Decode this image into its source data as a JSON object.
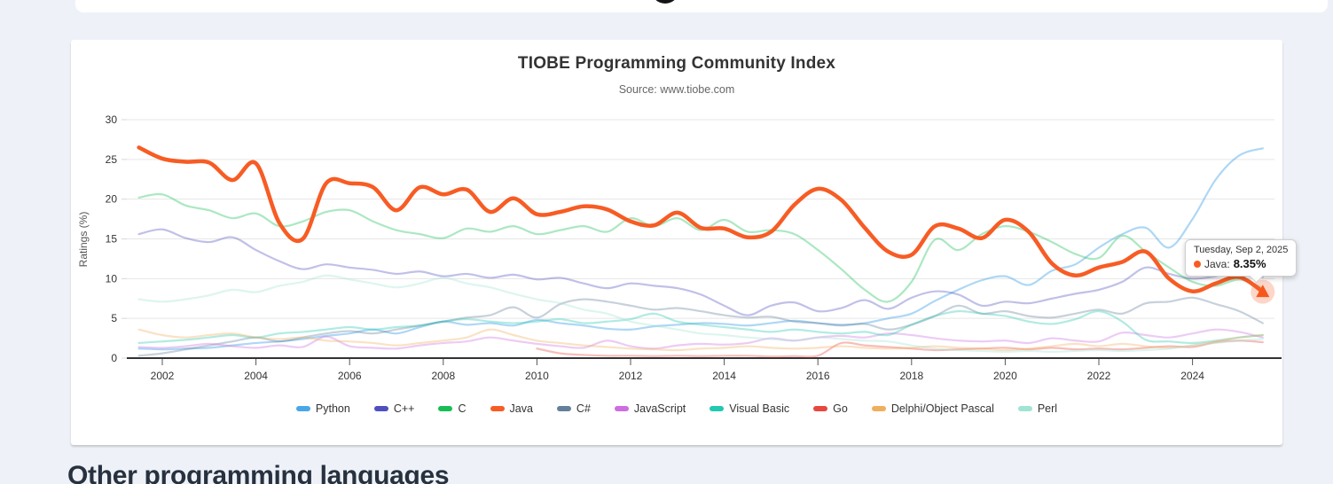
{
  "page": {
    "background": "#eef2f8",
    "other_section_heading": "Other programming languages"
  },
  "chart": {
    "title": "TIOBE Programming Community Index",
    "subtitle": "Source: www.tiobe.com",
    "y_axis_label": "Ratings (%)",
    "tooltip": {
      "date": "Tuesday, Sep 2, 2025",
      "series": "Java",
      "value": "8.35%"
    }
  },
  "chart_data": {
    "type": "line",
    "title": "TIOBE Programming Community Index",
    "subtitle": "Source: www.tiobe.com",
    "xlabel": "",
    "ylabel": "Ratings (%)",
    "ylim": [
      0,
      30
    ],
    "grid": true,
    "legend_position": "bottom",
    "y_ticks": [
      0,
      5,
      10,
      15,
      20,
      25,
      30
    ],
    "x_ticks": [
      2002,
      2004,
      2006,
      2008,
      2010,
      2012,
      2014,
      2016,
      2018,
      2020,
      2022,
      2024
    ],
    "x": [
      2001.5,
      2002,
      2002.5,
      2003,
      2003.5,
      2004,
      2004.5,
      2005,
      2005.5,
      2006,
      2006.5,
      2007,
      2007.5,
      2008,
      2008.5,
      2009,
      2009.5,
      2010,
      2010.5,
      2011,
      2011.5,
      2012,
      2012.5,
      2013,
      2013.5,
      2014,
      2014.5,
      2015,
      2015.5,
      2016,
      2016.5,
      2017,
      2017.5,
      2018,
      2018.5,
      2019,
      2019.5,
      2020,
      2020.5,
      2021,
      2021.5,
      2022,
      2022.5,
      2023,
      2023.5,
      2024,
      2024.5,
      2025,
      2025.5
    ],
    "series": [
      {
        "name": "Python",
        "color": "#49A7E8",
        "values": [
          1.2,
          1.1,
          1.2,
          1.3,
          1.6,
          1.9,
          2.1,
          2.4,
          2.8,
          3.1,
          3.6,
          3.1,
          3.9,
          4.6,
          4.2,
          4.4,
          4.1,
          4.8,
          4.4,
          4.1,
          3.7,
          3.6,
          4.0,
          4.2,
          4.4,
          4.3,
          4.1,
          4.4,
          4.7,
          4.4,
          4.2,
          4.4,
          5.0,
          5.6,
          7.2,
          8.6,
          9.8,
          10.3,
          9.2,
          11.0,
          11.8,
          13.9,
          15.6,
          16.4,
          13.9,
          17.5,
          22.5,
          25.5,
          26.4
        ]
      },
      {
        "name": "C++",
        "color": "#4F4FBF",
        "values": [
          15.6,
          16.2,
          15.1,
          14.6,
          15.2,
          13.6,
          12.2,
          11.2,
          11.8,
          11.4,
          11.1,
          10.6,
          10.9,
          10.3,
          10.6,
          10.1,
          10.5,
          9.9,
          10.1,
          9.4,
          8.8,
          9.4,
          9.1,
          8.8,
          8.0,
          6.6,
          5.4,
          6.6,
          7.0,
          5.9,
          6.3,
          7.3,
          6.2,
          7.6,
          8.4,
          8.0,
          6.6,
          7.1,
          6.9,
          7.5,
          8.1,
          8.6,
          9.6,
          11.4,
          10.6,
          10.0,
          10.3,
          11.0,
          10.2
        ]
      },
      {
        "name": "C",
        "color": "#16BE54",
        "values": [
          20.2,
          20.6,
          19.2,
          18.6,
          17.6,
          18.2,
          16.6,
          17.2,
          18.4,
          18.6,
          17.2,
          16.1,
          15.6,
          15.1,
          16.3,
          15.9,
          16.6,
          15.6,
          16.1,
          16.6,
          15.9,
          17.6,
          16.6,
          17.6,
          16.1,
          17.4,
          15.9,
          16.1,
          15.6,
          13.6,
          11.2,
          8.6,
          7.1,
          9.6,
          14.9,
          13.6,
          15.6,
          16.6,
          15.9,
          14.6,
          13.1,
          12.6,
          15.4,
          13.4,
          11.4,
          9.6,
          9.1,
          9.9,
          8.8
        ]
      },
      {
        "name": "Java",
        "color": "#F75C24",
        "values": [
          26.5,
          25.1,
          24.7,
          24.6,
          22.4,
          24.5,
          17.0,
          15.0,
          22.0,
          22.0,
          21.5,
          18.6,
          21.5,
          20.6,
          21.2,
          18.4,
          20.1,
          18.1,
          18.4,
          19.1,
          18.7,
          17.2,
          16.7,
          18.3,
          16.4,
          16.3,
          15.2,
          15.9,
          19.3,
          21.3,
          19.9,
          16.4,
          13.4,
          13.0,
          16.6,
          16.3,
          15.1,
          17.4,
          15.9,
          11.9,
          10.4,
          11.4,
          12.1,
          13.4,
          10.0,
          8.4,
          9.4,
          10.2,
          8.35
        ]
      },
      {
        "name": "C#",
        "color": "#64809C",
        "values": [
          0.3,
          0.6,
          1.1,
          1.6,
          2.1,
          2.6,
          2.1,
          2.6,
          3.1,
          3.4,
          3.1,
          3.6,
          4.1,
          4.6,
          5.1,
          5.4,
          6.4,
          5.1,
          6.8,
          7.4,
          7.1,
          6.6,
          6.1,
          6.3,
          5.9,
          5.4,
          5.1,
          5.2,
          4.6,
          4.4,
          4.1,
          4.3,
          3.6,
          4.2,
          5.3,
          6.6,
          5.6,
          5.9,
          5.3,
          5.1,
          5.6,
          6.1,
          5.6,
          6.9,
          7.1,
          7.6,
          6.8,
          5.9,
          4.4
        ]
      },
      {
        "name": "JavaScript",
        "color": "#CD6EE0",
        "values": [
          1.4,
          1.3,
          1.5,
          1.8,
          1.5,
          1.3,
          1.6,
          1.4,
          2.7,
          1.5,
          1.3,
          1.2,
          1.6,
          1.9,
          2.1,
          2.6,
          2.2,
          1.8,
          1.5,
          1.3,
          2.2,
          1.5,
          1.2,
          1.6,
          1.8,
          1.7,
          1.9,
          2.5,
          2.2,
          2.6,
          2.8,
          2.6,
          3.1,
          2.9,
          2.5,
          2.2,
          2.1,
          2.2,
          1.9,
          2.5,
          2.2,
          2.1,
          3.2,
          2.9,
          2.6,
          3.1,
          3.6,
          3.3,
          2.6
        ]
      },
      {
        "name": "Visual Basic",
        "color": "#23C8B1",
        "values": [
          1.9,
          2.1,
          2.3,
          2.6,
          2.9,
          2.6,
          3.1,
          3.3,
          3.6,
          3.9,
          3.6,
          3.9,
          4.1,
          4.6,
          4.9,
          4.6,
          4.4,
          4.6,
          4.9,
          4.4,
          4.6,
          4.9,
          5.6,
          4.6,
          4.2,
          3.9,
          3.6,
          3.3,
          3.6,
          3.3,
          3.1,
          3.3,
          2.9,
          4.2,
          5.3,
          5.9,
          5.6,
          5.3,
          4.6,
          4.3,
          4.9,
          5.9,
          4.6,
          2.3,
          2.1,
          1.9,
          2.2,
          2.6,
          2.9
        ]
      },
      {
        "name": "Go",
        "color": "#E8473F",
        "values": [
          null,
          null,
          null,
          null,
          null,
          null,
          null,
          null,
          null,
          null,
          null,
          null,
          null,
          null,
          null,
          null,
          null,
          1.2,
          0.6,
          0.4,
          0.3,
          0.3,
          0.25,
          0.3,
          0.25,
          0.3,
          0.3,
          0.2,
          0.25,
          0.3,
          1.9,
          1.6,
          1.4,
          1.2,
          1.0,
          1.1,
          1.2,
          1.3,
          1.1,
          1.3,
          1.1,
          1.2,
          1.1,
          1.3,
          1.5,
          1.4,
          2.0,
          2.2,
          2.0
        ]
      },
      {
        "name": "Delphi/Object Pascal",
        "color": "#F0AF5C",
        "values": [
          3.6,
          2.9,
          2.6,
          2.9,
          3.1,
          2.6,
          2.4,
          2.6,
          2.2,
          2.1,
          1.9,
          1.6,
          1.9,
          2.2,
          2.6,
          3.6,
          2.9,
          2.2,
          1.9,
          1.6,
          1.4,
          1.2,
          1.1,
          1.0,
          1.2,
          1.3,
          1.5,
          1.3,
          1.2,
          1.3,
          1.5,
          1.3,
          1.2,
          1.3,
          1.5,
          1.3,
          1.2,
          1.0,
          1.2,
          1.5,
          1.8,
          1.5,
          1.8,
          1.5,
          1.3,
          1.6,
          2.1,
          2.6,
          2.9
        ]
      },
      {
        "name": "Perl",
        "color": "#A0E4D3",
        "values": [
          7.4,
          7.1,
          7.4,
          7.9,
          8.6,
          8.3,
          9.1,
          9.6,
          10.4,
          9.9,
          9.4,
          8.9,
          9.4,
          10.1,
          9.4,
          8.9,
          8.1,
          7.4,
          6.9,
          6.1,
          5.6,
          4.6,
          4.1,
          3.6,
          3.1,
          2.9,
          2.6,
          2.4,
          2.2,
          2.6,
          2.4,
          2.2,
          2.1,
          1.6,
          1.2,
          1.0,
          0.9,
          0.8,
          0.9,
          0.8,
          0.9,
          1.0,
          0.9,
          1.0,
          1.2,
          1.6,
          1.9,
          2.2,
          2.4
        ]
      }
    ],
    "highlight": {
      "series": "Java",
      "x": 2025.5,
      "y": 8.35,
      "marker": "triangle"
    }
  }
}
